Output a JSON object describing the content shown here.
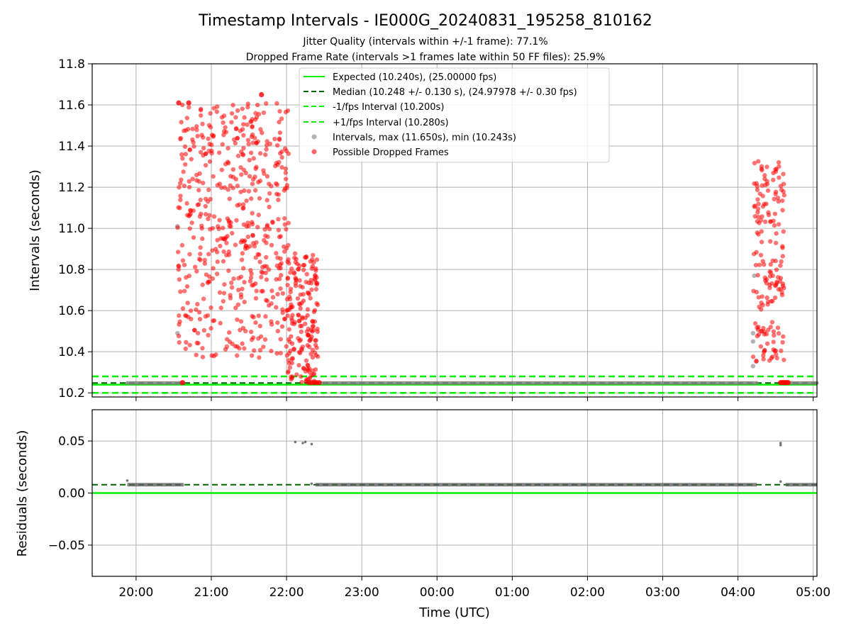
{
  "colors": {
    "expected": "#00ee00",
    "median": "#006400",
    "fps_band": "#00ee00",
    "intervals": "#808080",
    "dropped": "#ff0000",
    "grid": "#b0b0b0"
  },
  "chart_data": {
    "title": "Timestamp Intervals - IE000G_20240831_195258_810162",
    "subtitle_1": "Jitter Quality (intervals within +/-1 frame): 77.1%",
    "subtitle_2": "Dropped Frame Rate (intervals >1 frames late within 50 FF files): 25.9%",
    "xlabel": "Time (UTC)",
    "x_ticks": [
      "20:00",
      "21:00",
      "22:00",
      "23:00",
      "00:00",
      "01:00",
      "02:00",
      "03:00",
      "04:00",
      "05:00"
    ],
    "x_range": [
      "2024-08-31T19:25",
      "2024-09-01T05:03"
    ],
    "top": {
      "type": "scatter",
      "ylabel": "Intervals (seconds)",
      "ylim": [
        10.18,
        11.8
      ],
      "y_ticks": [
        "10.2",
        "10.4",
        "10.6",
        "10.8",
        "11.0",
        "11.2",
        "11.4",
        "11.6",
        "11.8"
      ],
      "grid": true,
      "legend_position": "top-center",
      "legend": [
        "Expected (10.240s), (25.00000 fps)",
        "Median (10.248 +/- 0.130 s), (24.97978 +/- 0.30 fps)",
        "-1/fps Interval (10.200s)",
        "+1/fps Interval (10.280s)",
        "Intervals, max (11.650s), min (10.243s)",
        "Possible Dropped Frames"
      ],
      "lines": {
        "expected": 10.24,
        "median": 10.248,
        "minus_1_fps": 10.2,
        "plus_1_fps": 10.28
      },
      "normal_segments": [
        {
          "start": "2024-08-31T19:53",
          "end": "2024-08-31T20:38",
          "value": 10.248
        },
        {
          "start": "2024-08-31T22:27",
          "end": "2024-09-01T04:15",
          "value": 10.248
        },
        {
          "start": "2024-09-01T04:38",
          "end": "2024-09-01T05:03",
          "value": 10.248
        }
      ],
      "normal_points": [
        {
          "t": "2024-08-31T20:33",
          "v": 10.49
        },
        {
          "t": "2024-08-31T20:33",
          "v": 11.01
        },
        {
          "t": "2024-09-01T04:12",
          "v": 10.49
        },
        {
          "t": "2024-09-01T04:12",
          "v": 10.45
        },
        {
          "t": "2024-09-01T04:12",
          "v": 10.33
        },
        {
          "t": "2024-09-01T04:13",
          "v": 10.77
        }
      ],
      "dropped_clusters": [
        {
          "start": "2024-08-31T20:33",
          "end": "2024-08-31T22:02",
          "y_min": 10.37,
          "y_max": 11.61,
          "count": 520
        },
        {
          "start": "2024-08-31T22:00",
          "end": "2024-08-31T22:25",
          "y_min": 10.25,
          "y_max": 10.88,
          "count": 190
        },
        {
          "start": "2024-09-01T04:12",
          "end": "2024-09-01T04:37",
          "y_min": 10.35,
          "y_max": 11.33,
          "count": 170
        }
      ],
      "dropped_points": [
        {
          "t": "2024-08-31T20:37",
          "v": 10.25
        },
        {
          "t": "2024-08-31T22:18",
          "v": 10.25
        },
        {
          "t": "2024-08-31T22:20",
          "v": 10.25
        },
        {
          "t": "2024-08-31T22:22",
          "v": 10.25
        },
        {
          "t": "2024-08-31T22:24",
          "v": 10.25
        },
        {
          "t": "2024-08-31T22:26",
          "v": 10.25
        },
        {
          "t": "2024-08-31T21:40",
          "v": 11.65
        },
        {
          "t": "2024-08-31T20:34",
          "v": 11.61
        },
        {
          "t": "2024-08-31T20:42",
          "v": 11.61
        },
        {
          "t": "2024-09-01T04:34",
          "v": 10.25
        },
        {
          "t": "2024-09-01T04:35",
          "v": 10.25
        },
        {
          "t": "2024-09-01T04:36",
          "v": 10.25
        },
        {
          "t": "2024-09-01T04:37",
          "v": 10.25
        },
        {
          "t": "2024-09-01T04:38",
          "v": 10.25
        },
        {
          "t": "2024-09-01T04:39",
          "v": 10.25
        },
        {
          "t": "2024-09-01T04:40",
          "v": 10.25
        }
      ]
    },
    "bottom": {
      "type": "scatter",
      "ylabel": "Residuals (seconds)",
      "ylim": [
        -0.08,
        0.08
      ],
      "y_ticks": [
        "−0.05",
        "0.00",
        "0.05"
      ],
      "grid": true,
      "lines": {
        "zero": 0.0,
        "median_residual": 0.008
      },
      "residual_segments": [
        {
          "start": "2024-08-31T19:53",
          "end": "2024-08-31T20:38",
          "value": 0.008
        },
        {
          "start": "2024-08-31T22:23",
          "end": "2024-09-01T04:15",
          "value": 0.008
        },
        {
          "start": "2024-09-01T04:38",
          "end": "2024-09-01T05:03",
          "value": 0.008
        }
      ],
      "residual_points": [
        {
          "t": "2024-08-31T19:53",
          "v": 0.012
        },
        {
          "t": "2024-08-31T22:07",
          "v": 0.049
        },
        {
          "t": "2024-08-31T22:13",
          "v": 0.048
        },
        {
          "t": "2024-08-31T22:15",
          "v": 0.049
        },
        {
          "t": "2024-08-31T22:20",
          "v": 0.047
        },
        {
          "t": "2024-08-31T22:20",
          "v": 0.009
        },
        {
          "t": "2024-09-01T04:34",
          "v": 0.046
        },
        {
          "t": "2024-09-01T04:34",
          "v": 0.048
        },
        {
          "t": "2024-09-01T04:34",
          "v": 0.011
        }
      ]
    }
  }
}
